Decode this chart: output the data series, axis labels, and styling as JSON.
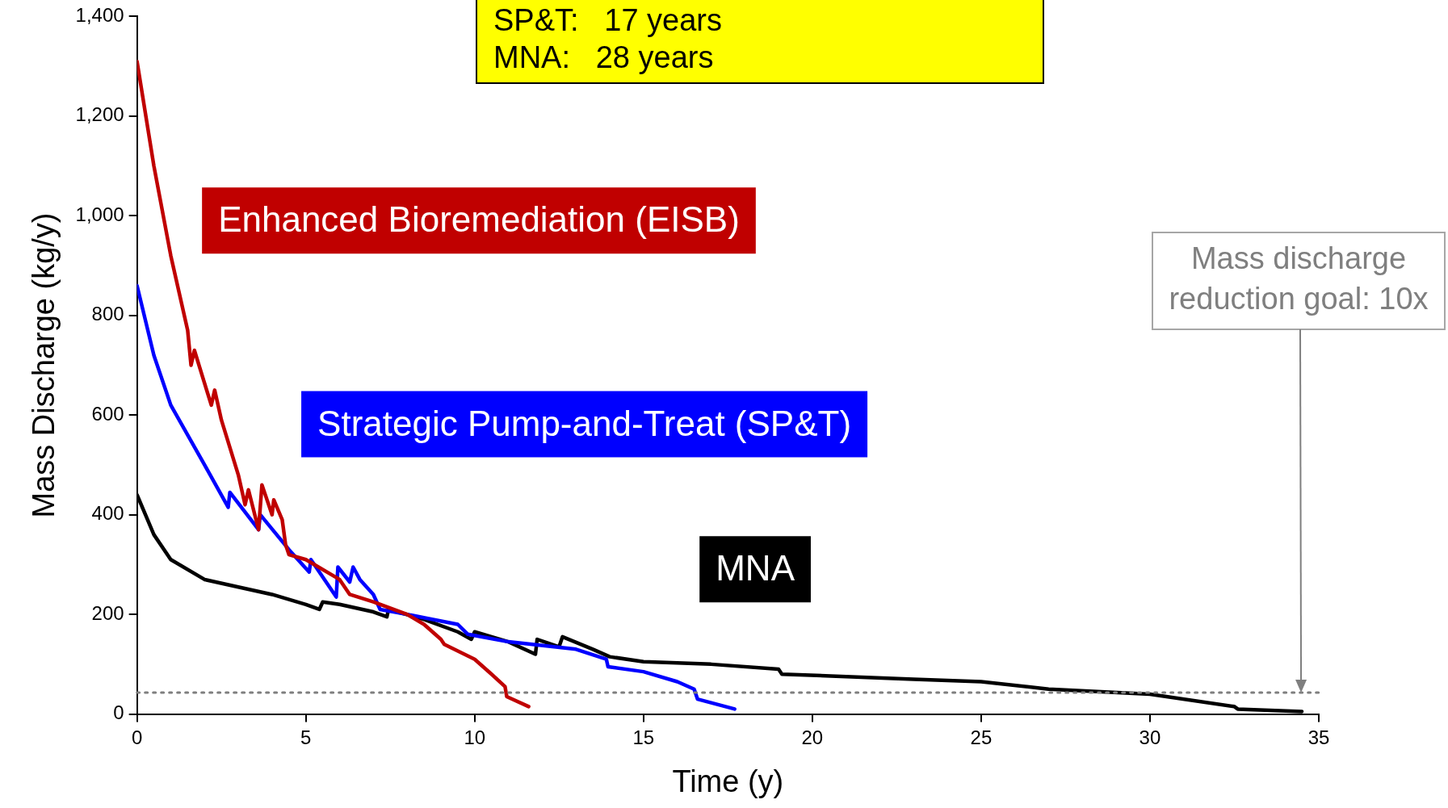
{
  "chart_data": {
    "type": "line",
    "xlabel": "Time (y)",
    "ylabel": "Mass Discharge (kg/y)",
    "xlim": [
      0,
      35
    ],
    "xticks": [
      0,
      5,
      10,
      15,
      20,
      25,
      30,
      35
    ],
    "ylim": [
      0,
      1400
    ],
    "yticks": [
      0,
      200,
      400,
      600,
      800,
      {
        "value": 1000,
        "label": "1,000"
      },
      {
        "value": 1200,
        "label": "1,200"
      },
      {
        "value": 1400,
        "label": "1,400"
      }
    ],
    "grid": false,
    "legend": false,
    "marker": "none",
    "line_style": "solid",
    "series": [
      {
        "name": "Enhanced Bioremediation (EISB)",
        "color": "#c00000",
        "x": [
          0,
          0.5,
          1,
          1.5,
          1.6,
          1.7,
          2.2,
          2.3,
          2.5,
          3,
          3.2,
          3.3,
          3.6,
          3.7,
          4,
          4.05,
          4.3,
          4.4,
          4.5,
          5,
          6,
          6.3,
          7,
          8,
          8.5,
          9,
          9.1,
          10,
          10.5,
          10.9,
          10.95,
          11.6
        ],
        "values": [
          1310,
          1100,
          920,
          770,
          700,
          730,
          620,
          650,
          590,
          480,
          420,
          450,
          370,
          460,
          400,
          430,
          390,
          340,
          320,
          310,
          270,
          240,
          225,
          200,
          180,
          150,
          140,
          110,
          80,
          55,
          35,
          15
        ]
      },
      {
        "name": "Strategic Pump-and-Treat (SP&T)",
        "color": "#0000ff",
        "x": [
          0,
          0.5,
          1,
          2,
          2.7,
          2.75,
          3.6,
          3.65,
          4.5,
          5.1,
          5.15,
          5.9,
          5.95,
          6.3,
          6.4,
          6.6,
          7,
          7.2,
          8,
          9.5,
          9.8,
          11,
          13,
          13.9,
          13.95,
          15,
          16,
          16.5,
          16.6,
          17.7
        ],
        "values": [
          860,
          720,
          620,
          500,
          415,
          445,
          370,
          400,
          330,
          285,
          310,
          235,
          295,
          265,
          295,
          270,
          240,
          210,
          200,
          180,
          160,
          145,
          130,
          110,
          95,
          85,
          65,
          50,
          30,
          10
        ]
      },
      {
        "name": "MNA",
        "color": "#000000",
        "x": [
          0,
          0.5,
          1,
          2,
          3,
          4,
          5,
          5.4,
          5.5,
          6,
          7,
          7.4,
          7.45,
          8.5,
          9.5,
          9.9,
          10,
          11,
          11.8,
          11.85,
          12.5,
          12.6,
          13.5,
          14,
          15,
          17,
          19,
          19.1,
          23,
          25,
          27,
          30,
          32.5,
          32.6,
          34.5
        ],
        "values": [
          440,
          360,
          310,
          270,
          255,
          240,
          220,
          210,
          225,
          220,
          205,
          195,
          210,
          190,
          165,
          150,
          165,
          145,
          120,
          150,
          135,
          155,
          130,
          115,
          105,
          100,
          90,
          80,
          70,
          65,
          50,
          40,
          15,
          10,
          5
        ]
      }
    ],
    "ref_lines": [
      {
        "axis": "y",
        "value": 43,
        "color": "#7f7f7f",
        "line_style": "dotted"
      }
    ],
    "annotations": [
      "SP&T:   17 years",
      "MNA:   28 years",
      "Mass discharge reduction goal: 10x"
    ]
  }
}
